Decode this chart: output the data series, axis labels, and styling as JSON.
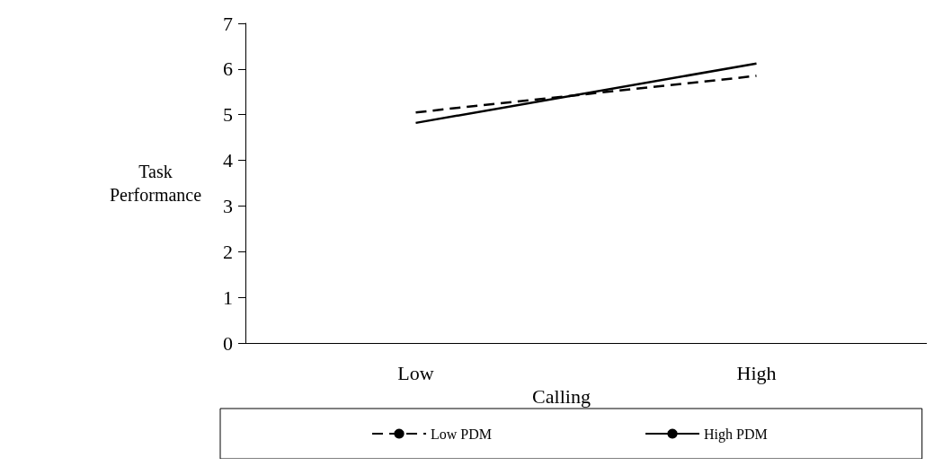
{
  "chart_data": {
    "type": "line",
    "xlabel": "Calling",
    "ylabel": "Task\nPerformance",
    "categories": [
      "Low",
      "High"
    ],
    "ylim": [
      0,
      7
    ],
    "yticks": [
      0,
      1,
      2,
      3,
      4,
      5,
      6,
      7
    ],
    "grid": false,
    "legend": "bottom",
    "marker": "none",
    "series": [
      {
        "name": "Low PDM",
        "color": "#000000",
        "line_style": "dashed",
        "values": [
          5.05,
          5.85
        ]
      },
      {
        "name": "High PDM",
        "color": "#000000",
        "line_style": "solid",
        "values": [
          4.82,
          6.12
        ]
      }
    ]
  }
}
